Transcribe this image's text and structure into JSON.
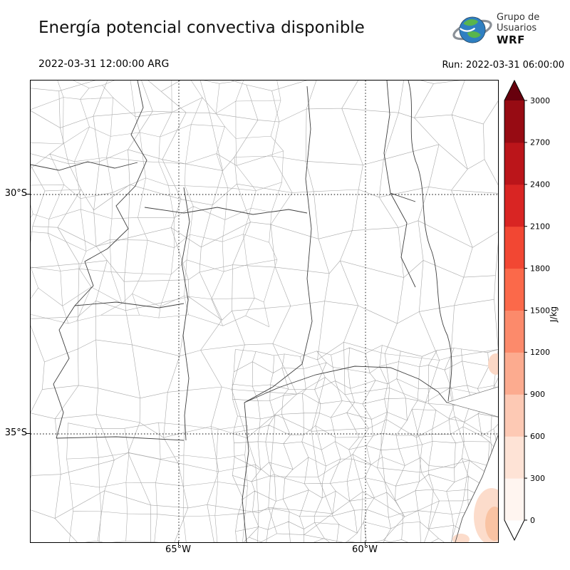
{
  "header": {
    "title": "Energía potencial convectiva disponible",
    "valid_time": "2022-03-31 12:00:00 ARG",
    "run_label": "Run: 2022-03-31 06:00:00",
    "logo": {
      "line1": "Grupo de",
      "line2": "Usuarios",
      "line3": "WRF"
    }
  },
  "map": {
    "yticks": [
      "30°S",
      "35°S"
    ],
    "xticks": [
      "65°W",
      "60°W"
    ],
    "cape_patches": "weak CAPE (0–600 J/kg) visible along the southeast Atlantic coast corner"
  },
  "colorbar": {
    "label": "J/kg",
    "ticks": [
      "0",
      "300",
      "600",
      "900",
      "1200",
      "1500",
      "1800",
      "2100",
      "2400",
      "2700",
      "3000"
    ],
    "colors": [
      "#fff5f0",
      "#fee3d6",
      "#fdc9b4",
      "#fcab8f",
      "#fc8a6b",
      "#fb694a",
      "#f24733",
      "#d92523",
      "#bb151a",
      "#970b13"
    ],
    "under_color": "#ffffff",
    "over_color": "#67000d"
  }
}
